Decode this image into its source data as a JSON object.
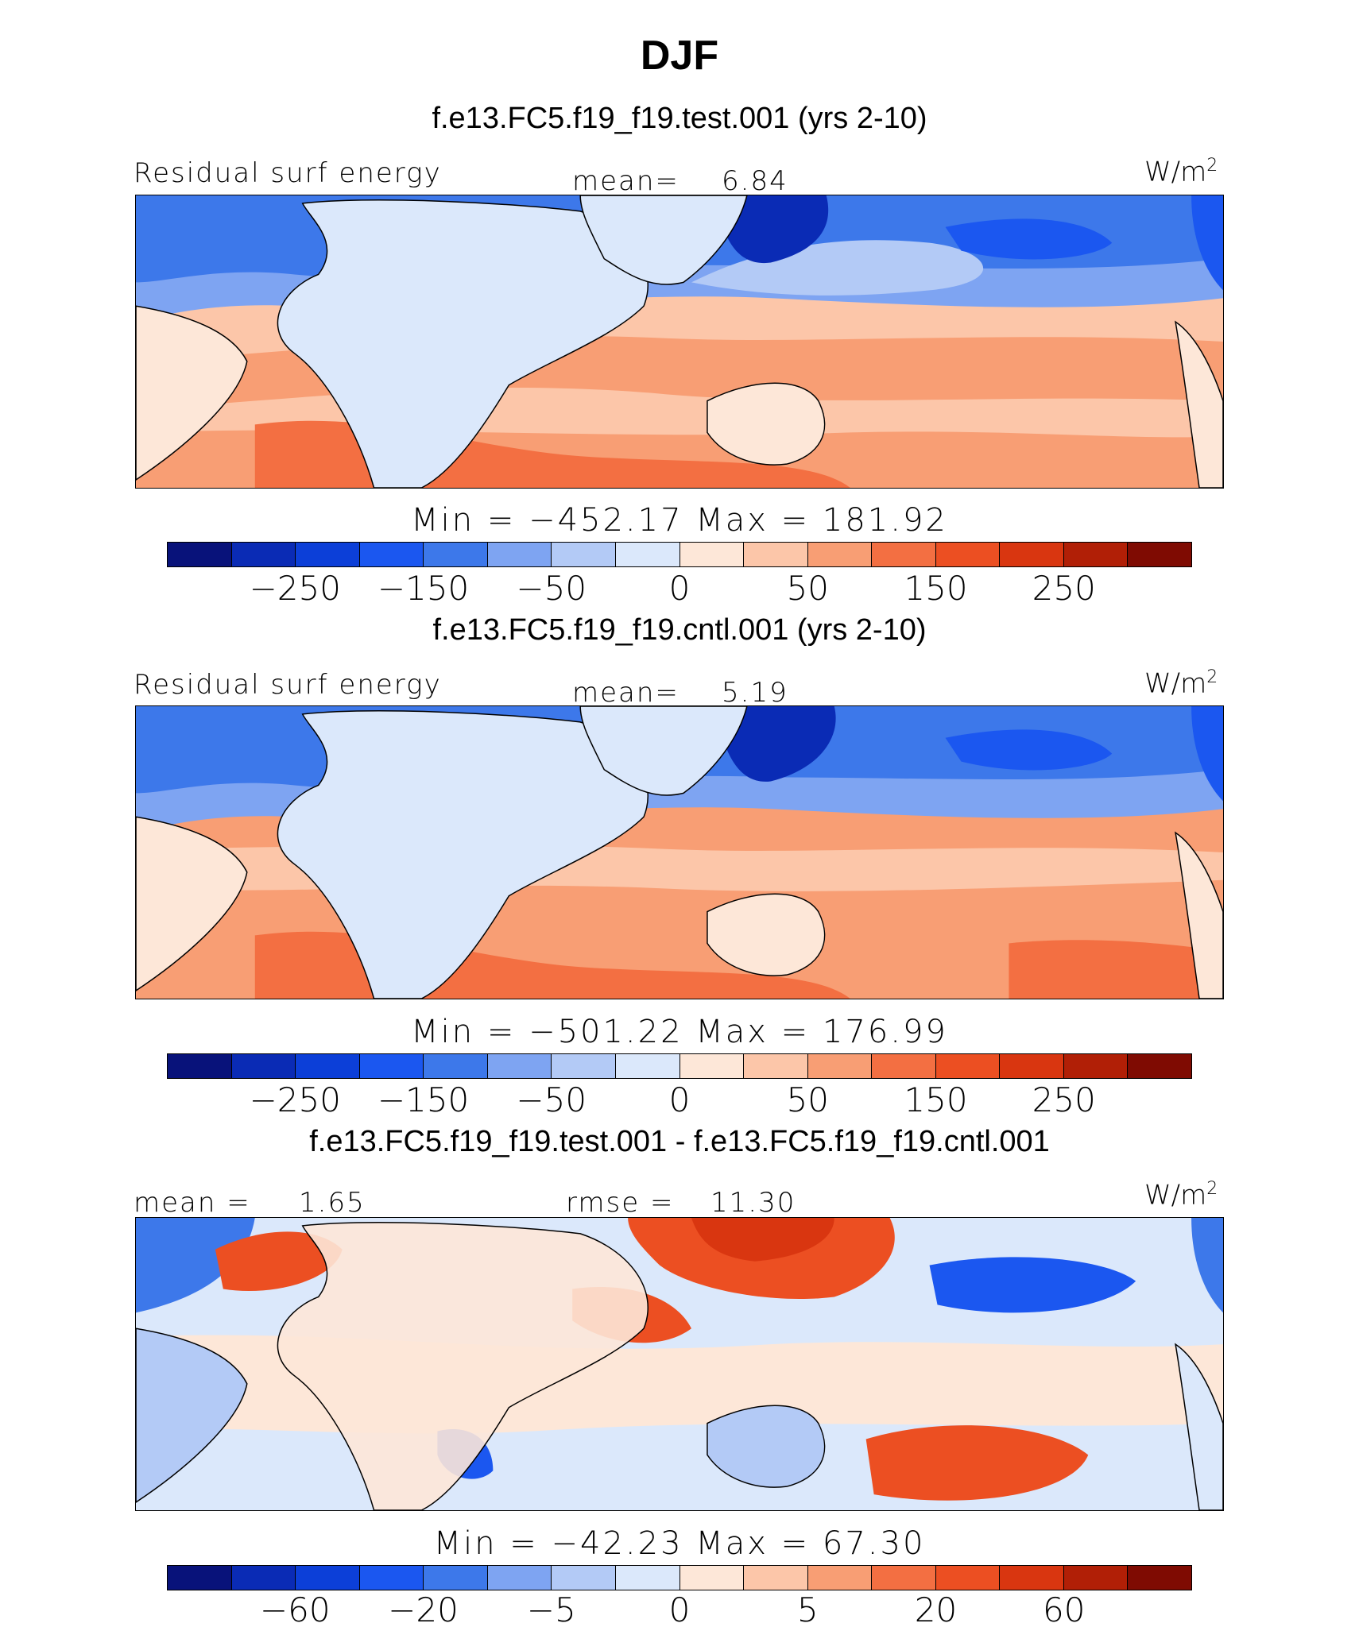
{
  "title": "DJF",
  "units": "W/m",
  "units_exp": "2",
  "colors": [
    "#08127a",
    "#0a2bb5",
    "#0c3fd8",
    "#1b57f0",
    "#3d78ea",
    "#7ea4f2",
    "#b3caf6",
    "#dbe8fb",
    "#fde7d8",
    "#fcc6a9",
    "#f89e74",
    "#f36f42",
    "#ec4f22",
    "#d93610",
    "#b11f06",
    "#7f0b02"
  ],
  "chart_data": [
    {
      "type": "heatmap",
      "title": "f.e13.FC5.f19_f19.test.001 (yrs 2-10)",
      "left_label": "Residual surf energy",
      "center_label": "mean=",
      "center_value": "6.84",
      "minmax": "Min = −452.17 Max = 181.92",
      "colorbar_levels": [
        -300,
        -250,
        -200,
        -150,
        -100,
        -50,
        -25,
        0,
        25,
        50,
        100,
        150,
        200,
        250,
        300
      ],
      "tick_labels": [
        "−250",
        "−150",
        "−50",
        "0",
        "50",
        "150",
        "250"
      ],
      "tick_levels": [
        -250,
        -150,
        -50,
        0,
        50,
        150,
        250
      ]
    },
    {
      "type": "heatmap",
      "title": "f.e13.FC5.f19_f19.cntl.001 (yrs 2-10)",
      "left_label": "Residual surf energy",
      "center_label": "mean=",
      "center_value": "5.19",
      "minmax": "Min = −501.22 Max = 176.99",
      "colorbar_levels": [
        -300,
        -250,
        -200,
        -150,
        -100,
        -50,
        -25,
        0,
        25,
        50,
        100,
        150,
        200,
        250,
        300
      ],
      "tick_labels": [
        "−250",
        "−150",
        "−50",
        "0",
        "50",
        "150",
        "250"
      ],
      "tick_levels": [
        -250,
        -150,
        -50,
        0,
        50,
        150,
        250
      ]
    },
    {
      "type": "heatmap",
      "title": "f.e13.FC5.f19_f19.test.001 - f.e13.FC5.f19_f19.cntl.001",
      "left_label": "mean =",
      "left_value": "1.65",
      "center_label": "rmse =",
      "center_value": "11.30",
      "minmax": "Min = −42.23 Max = 67.30",
      "colorbar_levels": [
        -80,
        -60,
        -40,
        -20,
        -10,
        -5,
        -2,
        0,
        2,
        5,
        10,
        20,
        40,
        60,
        80
      ],
      "tick_labels": [
        "−60",
        "−20",
        "−5",
        "0",
        "5",
        "20",
        "60"
      ],
      "tick_levels": [
        -60,
        -20,
        -5,
        0,
        5,
        20,
        60
      ]
    }
  ]
}
